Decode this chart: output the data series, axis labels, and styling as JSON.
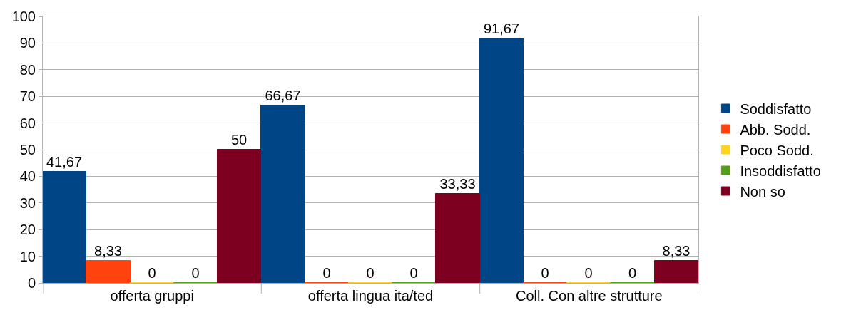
{
  "chart_data": {
    "type": "bar",
    "categories": [
      "offerta gruppi",
      "offerta lingua ita/ted",
      "Coll. Con altre strutture"
    ],
    "series": [
      {
        "name": "Soddisfatto",
        "color": "#004586",
        "values": [
          41.67,
          66.67,
          91.67
        ],
        "value_labels": [
          "41,67",
          "66,67",
          "91,67"
        ]
      },
      {
        "name": "Abb. Sodd.",
        "color": "#ff420e",
        "values": [
          8.33,
          0,
          0
        ],
        "value_labels": [
          "8,33",
          "0",
          "0"
        ]
      },
      {
        "name": "Poco Sodd.",
        "color": "#ffd320",
        "values": [
          0,
          0,
          0
        ],
        "value_labels": [
          "0",
          "0",
          "0"
        ]
      },
      {
        "name": "Insoddisfatto",
        "color": "#579d1c",
        "values": [
          0,
          0,
          0
        ],
        "value_labels": [
          "0",
          "0",
          "0"
        ]
      },
      {
        "name": "Non so",
        "color": "#7e0021",
        "values": [
          50,
          33.33,
          8.33
        ],
        "value_labels": [
          "50",
          "33,33",
          "8,33"
        ]
      }
    ],
    "ylim": [
      0,
      100
    ],
    "yticks": [
      0,
      10,
      20,
      30,
      40,
      50,
      60,
      70,
      80,
      90,
      100
    ],
    "grid": "y",
    "legend": "right"
  }
}
